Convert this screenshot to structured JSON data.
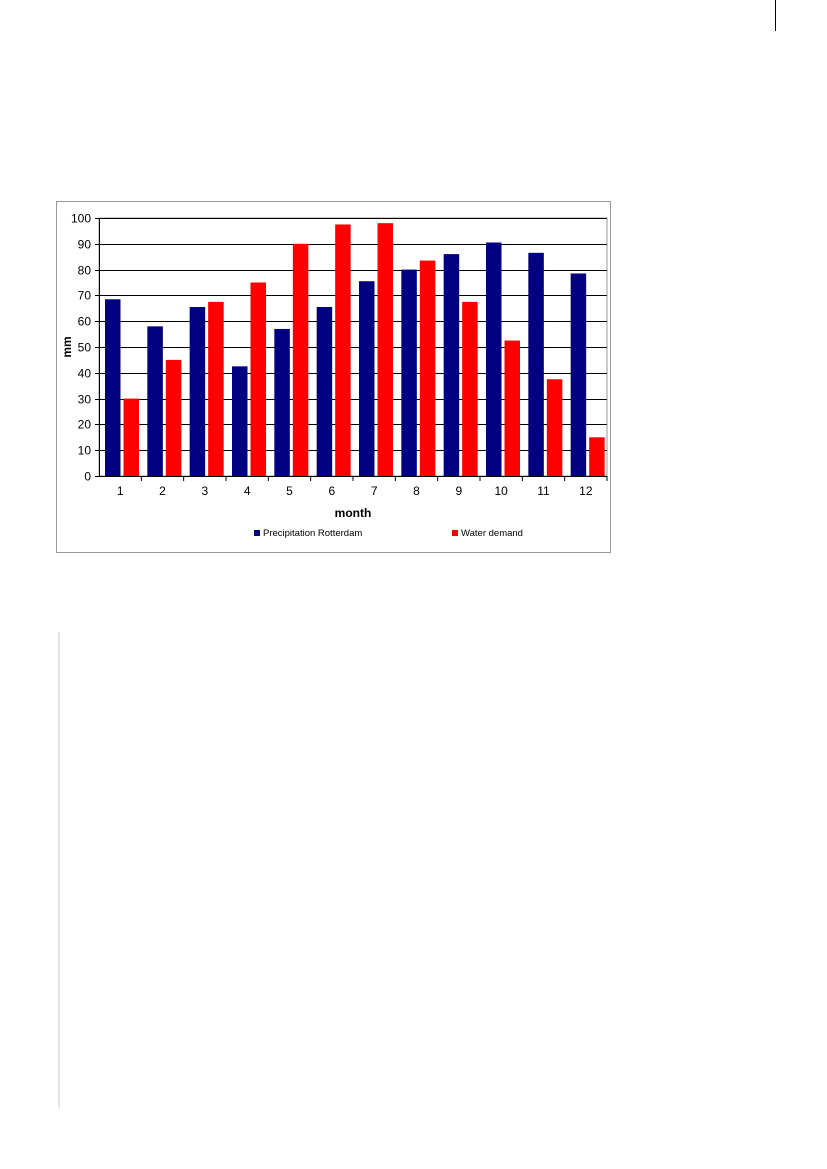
{
  "chart_data": {
    "type": "bar",
    "title": "",
    "xlabel": "month",
    "ylabel": "mm",
    "ylim": [
      0,
      100
    ],
    "yticks": [
      0,
      10,
      20,
      30,
      40,
      50,
      60,
      70,
      80,
      90,
      100
    ],
    "grid": true,
    "legend_position": "bottom",
    "categories": [
      "1",
      "2",
      "3",
      "4",
      "5",
      "6",
      "7",
      "8",
      "9",
      "10",
      "11",
      "12"
    ],
    "series": [
      {
        "name": "Precipitation Rotterdam",
        "color": "#000080",
        "values": [
          68.5,
          58,
          65.5,
          42.5,
          57,
          65.5,
          75.5,
          80,
          86,
          90.5,
          86.5,
          78.5
        ]
      },
      {
        "name": "Water demand",
        "color": "#ff0000",
        "values": [
          30,
          45,
          67.5,
          75,
          90,
          97.5,
          98,
          83.5,
          67.5,
          52.5,
          37.5,
          15
        ]
      }
    ]
  }
}
